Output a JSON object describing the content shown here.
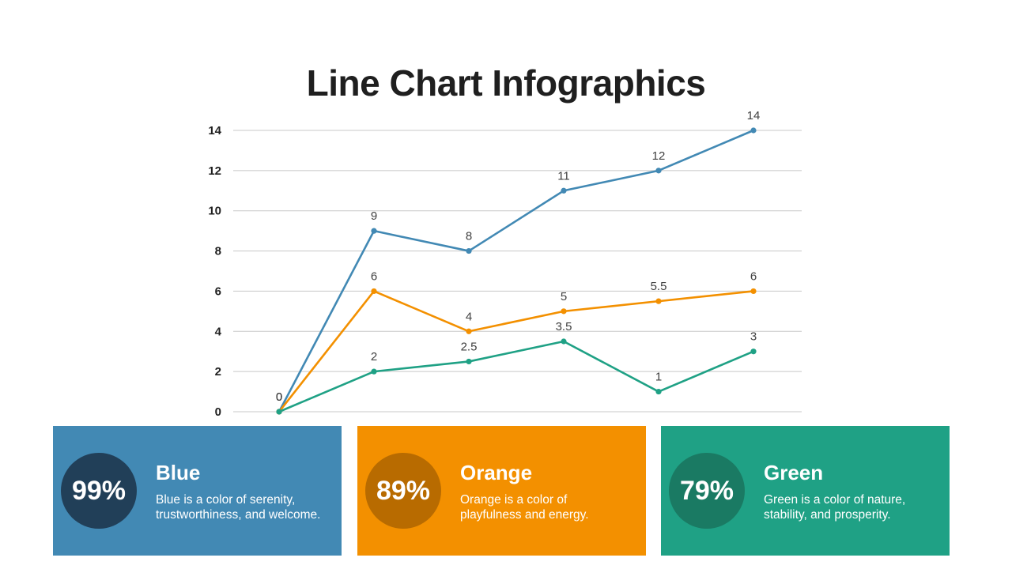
{
  "title": "Line Chart Infographics",
  "colors": {
    "blue": "#4289b4",
    "blue_dark": "#213f58",
    "orange": "#f39000",
    "orange_dark": "#b86b00",
    "green": "#1fa185",
    "green_dark": "#1a7a63"
  },
  "chart_data": {
    "type": "line",
    "x": [
      1,
      2,
      3,
      4,
      5,
      6
    ],
    "ylim": [
      0,
      14
    ],
    "yticks": [
      "0",
      "2",
      "4",
      "6",
      "8",
      "10",
      "12",
      "14"
    ],
    "grid": true,
    "series": [
      {
        "color": "#4289b4",
        "values": [
          0,
          9,
          8,
          11,
          12,
          14
        ],
        "labels": [
          "0",
          "9",
          "8",
          "11",
          "12",
          "14"
        ]
      },
      {
        "color": "#f39000",
        "values": [
          0,
          6,
          4,
          5,
          5.5,
          6
        ],
        "labels": [
          "0",
          "6",
          "4",
          "5",
          "5.5",
          "6"
        ]
      },
      {
        "color": "#1fa185",
        "values": [
          0,
          2,
          2.5,
          3.5,
          1,
          3
        ],
        "labels": [
          "0",
          "2",
          "2.5",
          "3.5",
          "1",
          "3"
        ]
      }
    ]
  },
  "cards": [
    {
      "percent": "99%",
      "title": "Blue",
      "text_line1": "Blue is a color of serenity,",
      "text_line2": "trustworthiness,  and welcome."
    },
    {
      "percent": "89%",
      "title": "Orange",
      "text_line1": "Orange is a color of",
      "text_line2": "playfulness and energy."
    },
    {
      "percent": "79%",
      "title": "Green",
      "text_line1": "Green is a color of nature,",
      "text_line2": "stability, and prosperity."
    }
  ]
}
